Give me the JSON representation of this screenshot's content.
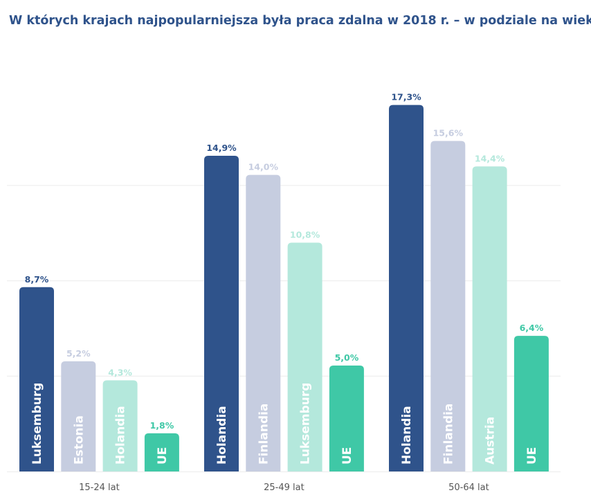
{
  "title": "W których krajach najpopularniejsza była praca zdalna w 2018 r. – w podziale na wiek",
  "colors": {
    "dark_blue": "#2f538b",
    "light_gray_blue": "#c6cde0",
    "light_mint": "#b4e8dc",
    "mint": "#3fc8a6",
    "value_dark": "#2f538b",
    "value_light": "#c6cde0",
    "value_mint_light": "#b4e8dc",
    "value_mint": "#3fc8a6",
    "grid": "#ececec",
    "axis_label": "#555555"
  },
  "chart_data": {
    "type": "bar",
    "title": "W których krajach najpopularniejsza była praca zdalna w 2018 r. – w podziale na wiek",
    "xlabel": "",
    "ylabel": "",
    "ylim": [
      0,
      20
    ],
    "grid": true,
    "categories": [
      "15-24 lat",
      "25-49 lat",
      "50-64 lat"
    ],
    "groups": [
      {
        "category": "15-24 lat",
        "bars": [
          {
            "country": "Luksemburg",
            "value": 8.7,
            "label": "8,7%",
            "style": "dark_blue"
          },
          {
            "country": "Estonia",
            "value": 5.2,
            "label": "5,2%",
            "style": "light_gray_blue"
          },
          {
            "country": "Holandia",
            "value": 4.3,
            "label": "4,3%",
            "style": "light_mint"
          },
          {
            "country": "UE",
            "value": 1.8,
            "label": "1,8%",
            "style": "mint"
          }
        ]
      },
      {
        "category": "25-49 lat",
        "bars": [
          {
            "country": "Holandia",
            "value": 14.9,
            "label": "14,9%",
            "style": "dark_blue"
          },
          {
            "country": "Finlandia",
            "value": 14.0,
            "label": "14,0%",
            "style": "light_gray_blue"
          },
          {
            "country": "Luksemburg",
            "value": 10.8,
            "label": "10,8%",
            "style": "light_mint"
          },
          {
            "country": "UE",
            "value": 5.0,
            "label": "5,0%",
            "style": "mint"
          }
        ]
      },
      {
        "category": "50-64 lat",
        "bars": [
          {
            "country": "Holandia",
            "value": 17.3,
            "label": "17,3%",
            "style": "dark_blue"
          },
          {
            "country": "Finlandia",
            "value": 15.6,
            "label": "15,6%",
            "style": "light_gray_blue"
          },
          {
            "country": "Austria",
            "value": 14.4,
            "label": "14,4%",
            "style": "light_mint"
          },
          {
            "country": "UE",
            "value": 6.4,
            "label": "6,4%",
            "style": "mint"
          }
        ]
      }
    ]
  }
}
